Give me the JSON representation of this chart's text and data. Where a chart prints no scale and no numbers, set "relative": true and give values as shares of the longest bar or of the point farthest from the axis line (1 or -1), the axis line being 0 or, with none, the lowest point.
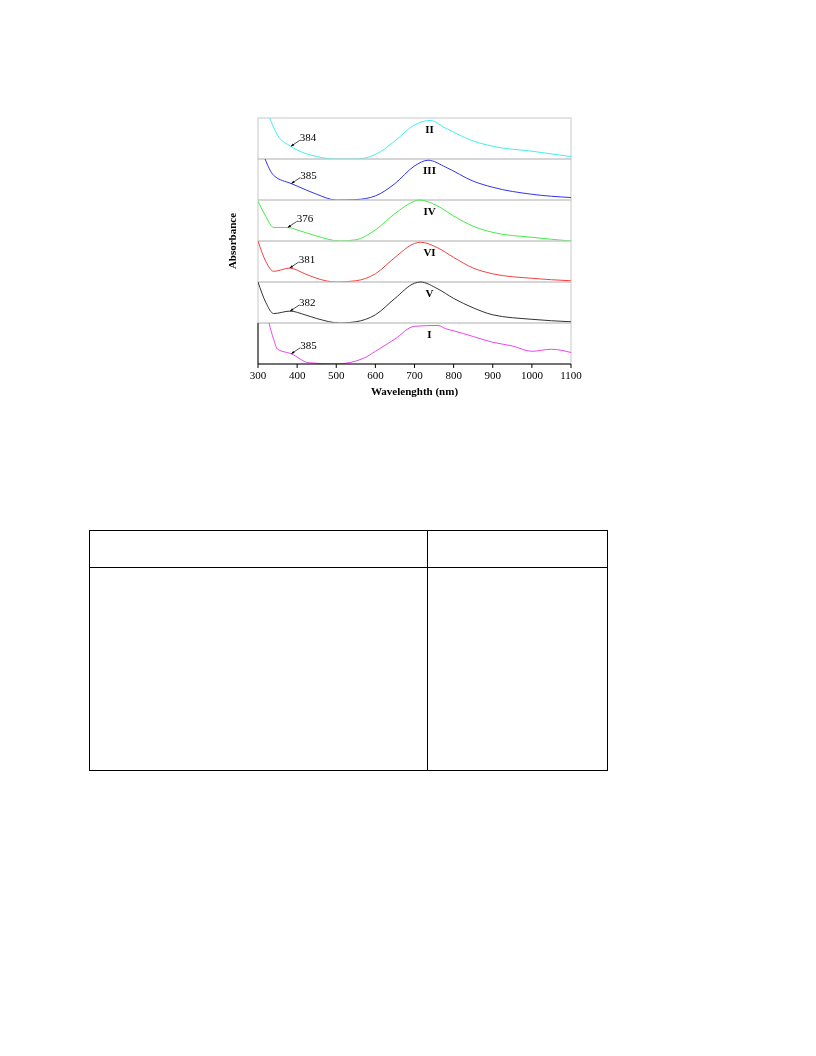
{
  "chart_data": [
    {
      "type": "line",
      "relative": true,
      "xlim": [
        300,
        1100
      ],
      "ylabel": "Absorbance",
      "series": [
        {
          "name": "II",
          "color": "#44eeee",
          "x": [
            330,
            350,
            384,
            400,
            450,
            500,
            550,
            600,
            650,
            700,
            740,
            780,
            850,
            900,
            1000,
            1100
          ],
          "values": [
            1,
            0.58,
            0.31,
            0.22,
            0.06,
            0,
            0,
            0.11,
            0.44,
            0.83,
            0.94,
            0.75,
            0.44,
            0.31,
            0.19,
            0.06
          ]
        }
      ],
      "annotations": [
        {
          "text": "384",
          "x": 384,
          "y": 0.31
        }
      ]
    },
    {
      "type": "line",
      "relative": true,
      "xlim": [
        300,
        1100
      ],
      "series": [
        {
          "name": "III",
          "color": "#3333ee",
          "x": [
            318,
            340,
            385,
            400,
            450,
            500,
            550,
            600,
            650,
            700,
            735,
            780,
            850,
            900,
            1000,
            1100
          ],
          "values": [
            1,
            0.6,
            0.4,
            0.34,
            0.14,
            0,
            0.01,
            0.1,
            0.4,
            0.83,
            0.97,
            0.8,
            0.46,
            0.31,
            0.14,
            0.06
          ]
        }
      ],
      "annotations": [
        {
          "text": "385",
          "x": 385,
          "y": 0.4
        }
      ]
    },
    {
      "type": "line",
      "relative": true,
      "xlim": [
        300,
        1100
      ],
      "series": [
        {
          "name": "IV",
          "color": "#44ee44",
          "x": [
            300,
            320,
            340,
            376,
            400,
            450,
            510,
            550,
            600,
            650,
            700,
            710,
            760,
            800,
            850,
            900,
            1000,
            1100
          ],
          "values": [
            0.97,
            0.6,
            0.33,
            0.33,
            0.27,
            0.12,
            0,
            0.03,
            0.27,
            0.67,
            0.97,
            1,
            0.85,
            0.61,
            0.36,
            0.21,
            0.09,
            0
          ]
        }
      ],
      "annotations": [
        {
          "text": "376",
          "x": 376,
          "y": 0.33
        }
      ]
    },
    {
      "type": "line",
      "relative": true,
      "xlim": [
        300,
        1100
      ],
      "series": [
        {
          "name": "VI",
          "color": "#ee4444",
          "x": [
            300,
            320,
            340,
            381,
            420,
            450,
            500,
            550,
            600,
            650,
            700,
            715,
            760,
            800,
            850,
            900,
            1000,
            1100
          ],
          "values": [
            1,
            0.5,
            0.26,
            0.34,
            0.2,
            0.09,
            0,
            0.03,
            0.2,
            0.6,
            0.94,
            0.97,
            0.83,
            0.6,
            0.34,
            0.2,
            0.09,
            0.03
          ]
        }
      ],
      "annotations": [
        {
          "text": "381",
          "x": 381,
          "y": 0.34
        }
      ]
    },
    {
      "type": "line",
      "relative": true,
      "xlim": [
        300,
        1100
      ],
      "series": [
        {
          "name": "V",
          "color": "#333333",
          "x": [
            300,
            320,
            340,
            382,
            420,
            450,
            510,
            550,
            600,
            650,
            700,
            715,
            760,
            800,
            850,
            900,
            1000,
            1100
          ],
          "values": [
            1,
            0.5,
            0.23,
            0.29,
            0.2,
            0.11,
            0,
            0.03,
            0.2,
            0.6,
            0.97,
            1,
            0.83,
            0.6,
            0.37,
            0.2,
            0.09,
            0.03
          ]
        }
      ],
      "annotations": [
        {
          "text": "382",
          "x": 382,
          "y": 0.29
        }
      ]
    },
    {
      "type": "line",
      "relative": true,
      "xlim": [
        300,
        1100
      ],
      "xticks": [
        300,
        400,
        500,
        600,
        700,
        800,
        900,
        1000,
        1100
      ],
      "tick_labels": "x",
      "xlabel": "Wavelenghth (nm)",
      "series": [
        {
          "name": "I",
          "color": "#ee44ee",
          "x": [
            328,
            340,
            350,
            385,
            430,
            500,
            570,
            600,
            650,
            700,
            760,
            780,
            800,
            850,
            900,
            950,
            1000,
            1050,
            1100
          ],
          "values": [
            1,
            0.6,
            0.36,
            0.25,
            0.03,
            0,
            0.14,
            0.31,
            0.61,
            0.92,
            0.94,
            0.86,
            0.81,
            0.67,
            0.53,
            0.44,
            0.31,
            0.36,
            0.28
          ]
        }
      ],
      "annotations": [
        {
          "text": "385",
          "x": 385,
          "y": 0.25
        }
      ]
    }
  ]
}
